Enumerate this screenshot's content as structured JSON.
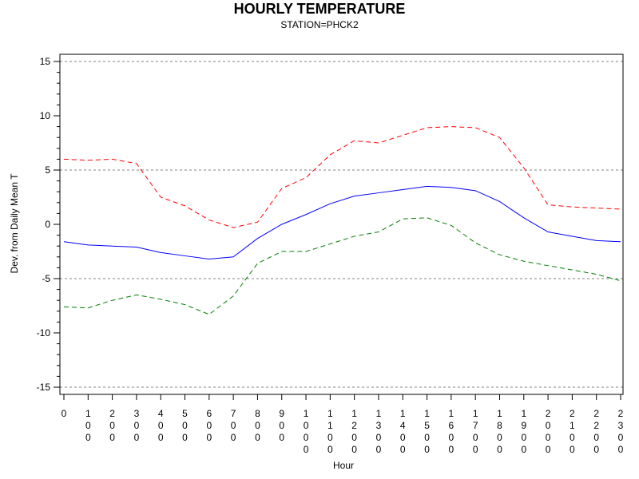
{
  "chart_data": {
    "type": "line",
    "title": "HOURLY TEMPERATURE",
    "subtitle": "STATION=PHCK2",
    "xlabel": "Hour",
    "ylabel": "Dev. from Daily Mean T",
    "ylim": [
      -15,
      15
    ],
    "yticks": [
      -15,
      -10,
      -5,
      0,
      5,
      10,
      15
    ],
    "reference_lines": [
      -15,
      -5,
      5,
      15
    ],
    "categories": [
      "0",
      "100",
      "200",
      "300",
      "400",
      "500",
      "600",
      "700",
      "800",
      "900",
      "1000",
      "1100",
      "1200",
      "1300",
      "1400",
      "1500",
      "1600",
      "1700",
      "1800",
      "1900",
      "2000",
      "2100",
      "2200",
      "2300"
    ],
    "series": [
      {
        "style": "dashed",
        "color": "#ff0000",
        "values": [
          6.0,
          5.9,
          6.0,
          5.6,
          2.5,
          1.7,
          0.4,
          -0.3,
          0.2,
          3.3,
          4.3,
          6.4,
          7.7,
          7.5,
          8.2,
          8.9,
          9.0,
          8.9,
          8.0,
          5.2,
          1.8,
          1.6,
          1.5,
          1.4
        ]
      },
      {
        "style": "solid",
        "color": "#0000ff",
        "values": [
          -1.6,
          -1.9,
          -2.0,
          -2.1,
          -2.6,
          -2.9,
          -3.2,
          -3.0,
          -1.3,
          0.0,
          0.9,
          1.9,
          2.6,
          2.9,
          3.2,
          3.5,
          3.4,
          3.1,
          2.1,
          0.6,
          -0.7,
          -1.1,
          -1.5,
          -1.6
        ]
      },
      {
        "style": "dashed",
        "color": "#008000",
        "values": [
          -7.6,
          -7.7,
          -7.0,
          -6.5,
          -6.9,
          -7.4,
          -8.3,
          -6.6,
          -3.6,
          -2.5,
          -2.5,
          -1.8,
          -1.1,
          -0.7,
          0.5,
          0.6,
          -0.1,
          -1.7,
          -2.8,
          -3.4,
          -3.8,
          -4.2,
          -4.6,
          -5.2
        ]
      }
    ],
    "grid": false,
    "colors": {
      "axis": "#000000",
      "reference_line": "#808080"
    }
  }
}
